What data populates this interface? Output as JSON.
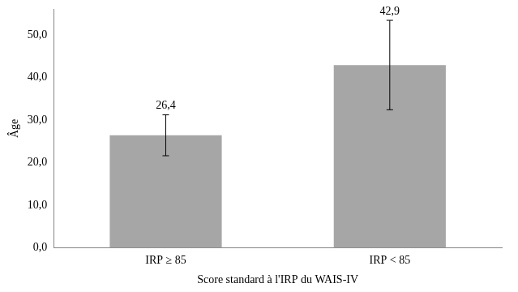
{
  "chart_data": {
    "type": "bar",
    "x_label": "Score standard à l'IRP du WAIS-IV",
    "y_label": "Âge",
    "categories": [
      "IRP ≥ 85",
      "IRP < 85"
    ],
    "values": [
      26.4,
      42.9
    ],
    "value_labels": [
      "26,4",
      "42,9"
    ],
    "error": [
      4.8,
      10.5
    ],
    "color": "#a6a6a6",
    "ylim": [
      0,
      56
    ],
    "yticks": [
      {
        "value": 0,
        "label": "0,0"
      },
      {
        "value": 10,
        "label": "10,0"
      },
      {
        "value": 20,
        "label": "20,0"
      },
      {
        "value": 30,
        "label": "30,0"
      },
      {
        "value": 40,
        "label": "40,0"
      },
      {
        "value": 50,
        "label": "50,0"
      }
    ],
    "grid": false,
    "data_labels": true
  }
}
